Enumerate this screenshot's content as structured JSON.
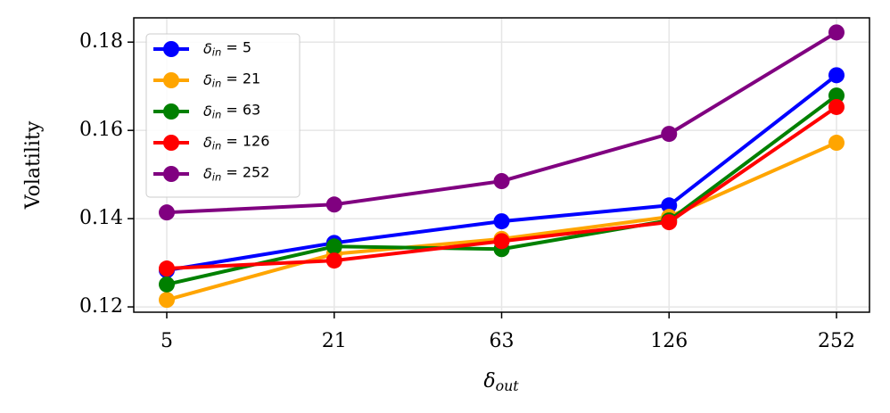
{
  "chart_data": {
    "type": "line",
    "xlabel": "δout",
    "ylabel": "Volatility",
    "categories": [
      "5",
      "21",
      "63",
      "126",
      "252"
    ],
    "series": [
      {
        "name": "δin = 5",
        "color": "#0000ff",
        "values": [
          0.1283,
          0.1345,
          0.1394,
          0.143,
          0.1725
        ]
      },
      {
        "name": "δin = 21",
        "color": "#ffa500",
        "values": [
          0.1216,
          0.132,
          0.1354,
          0.1404,
          0.1572
        ]
      },
      {
        "name": "δin = 63",
        "color": "#008000",
        "values": [
          0.1251,
          0.1337,
          0.1331,
          0.1396,
          0.1679
        ]
      },
      {
        "name": "δin = 126",
        "color": "#ff0000",
        "values": [
          0.1287,
          0.1305,
          0.1349,
          0.1392,
          0.1653
        ]
      },
      {
        "name": "δin = 252",
        "color": "#800080",
        "values": [
          0.1414,
          0.1432,
          0.1485,
          0.1592,
          0.1822
        ]
      }
    ],
    "ylim": [
      0.1188,
      0.1855
    ],
    "yticks": [
      0.12,
      0.14,
      0.16,
      0.18
    ],
    "grid": true,
    "legend": "upper left"
  }
}
